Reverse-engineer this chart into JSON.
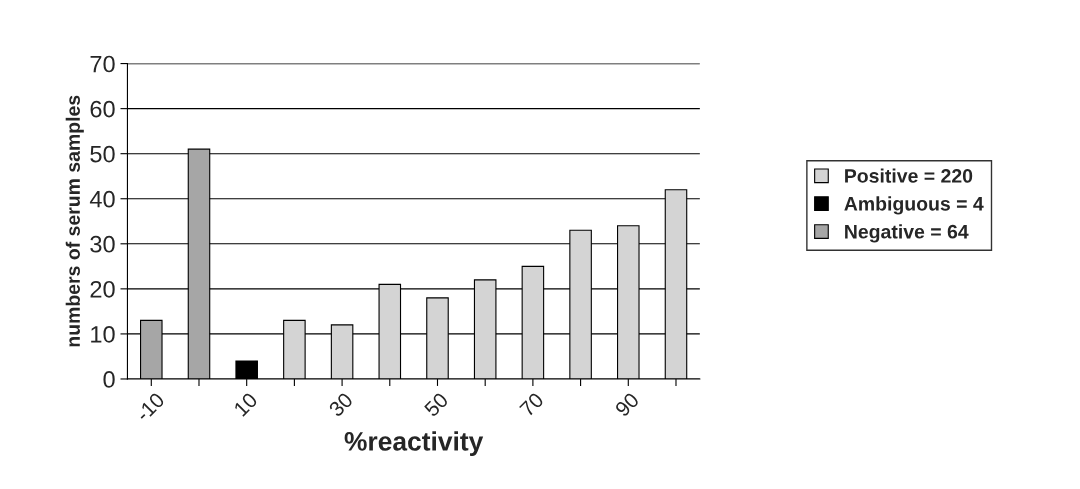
{
  "chart_data": {
    "type": "bar",
    "xlabel": "%reactivity",
    "ylabel": "numbers of serum samples",
    "categories": [
      "-10",
      null,
      "10",
      null,
      "30",
      null,
      "50",
      null,
      "70",
      null,
      "90",
      null
    ],
    "series": [
      {
        "name": "Positive = 220",
        "color": "#d4d4d4",
        "values": [
          null,
          null,
          null,
          13,
          12,
          21,
          18,
          22,
          25,
          33,
          34,
          42
        ]
      },
      {
        "name": "Ambiguous = 4",
        "color": "#000000",
        "values": [
          null,
          null,
          4,
          null,
          null,
          null,
          null,
          null,
          null,
          null,
          null,
          null
        ]
      },
      {
        "name": "Negative = 64",
        "color": "#a6a6a6",
        "values": [
          13,
          51,
          null,
          null,
          null,
          null,
          null,
          null,
          null,
          null,
          null,
          null
        ]
      }
    ],
    "ylim": [
      0,
      70
    ],
    "yticks": [
      0,
      10,
      20,
      30,
      40,
      50,
      60,
      70
    ],
    "grid": "y",
    "legend": "right"
  }
}
